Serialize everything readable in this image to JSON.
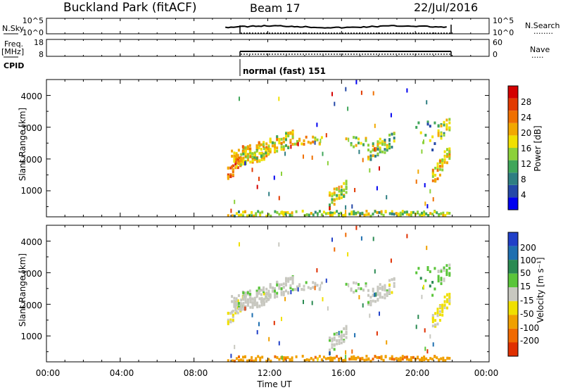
{
  "header": {
    "station": "Buckland Park (fitACF)",
    "beam": "Beam 17",
    "date": "22/Jul/2016"
  },
  "panels": {
    "nsky": {
      "label": "N.Sky",
      "left_ticks": [
        "10^5",
        "10^0"
      ],
      "right_ticks": [
        "10^5",
        "10^0"
      ],
      "right_label": "N.Search",
      "right_sample": "........"
    },
    "freq": {
      "label_top": "Freq.",
      "label_unit": "[MHz]",
      "left_ticks": [
        "18",
        "8"
      ],
      "right_ticks": [
        "60",
        "0"
      ],
      "right_label": "Nave",
      "right_sample": "....."
    },
    "cpid": {
      "label": "CPID",
      "value": "normal (fast) 151"
    }
  },
  "power_panel": {
    "ylabel": "Slant Range [km]",
    "y_ticks": [
      "1000",
      "2000",
      "3000",
      "4000"
    ],
    "colorbar": {
      "label": "Power [dB]",
      "ticks": [
        "4",
        "8",
        "12",
        "16",
        "20",
        "24",
        "28"
      ],
      "colors": [
        "#0000f0",
        "#2448a8",
        "#2e7e82",
        "#3fa65a",
        "#8cd13a",
        "#f0e000",
        "#f2a800",
        "#f07000",
        "#e23a00",
        "#d40000"
      ]
    }
  },
  "velocity_panel": {
    "ylabel": "Slant Range [km]",
    "y_ticks": [
      "1000",
      "2000",
      "3000",
      "4000"
    ],
    "colorbar": {
      "label": "Velocity [m s⁻¹]",
      "ticks": [
        "200",
        "100",
        "50",
        "15",
        "-15",
        "-50",
        "-100",
        "-200"
      ],
      "colors": [
        "#2040c8",
        "#1e6fb0",
        "#2a8a52",
        "#5ac53a",
        "#c8c8c0",
        "#f0e000",
        "#f0a000",
        "#f06a00",
        "#e03000"
      ]
    }
  },
  "x_axis": {
    "label": "Time UT",
    "ticks": [
      "00:00",
      "04:00",
      "08:00",
      "12:00",
      "16:00",
      "20:00",
      "00:00"
    ]
  },
  "chart_data": {
    "type": "heatmap",
    "title": "Buckland Park (fitACF)",
    "xlabel": "Time UT",
    "ylabel": "Slant Range [km]",
    "x_range_hours": [
      0,
      24
    ],
    "y_range_km": [
      180,
      4500
    ],
    "data_start_hour": 9.7,
    "data_end_hour": 21.8,
    "power_scale_db": [
      0,
      30
    ],
    "velocity_scale_ms": [
      -250,
      250
    ],
    "echo_regions": [
      {
        "start_hour": 9.8,
        "end_hour": 10.6,
        "range_km": [
          1500,
          2150
        ],
        "power_db": 24,
        "velocity_ms": -20
      },
      {
        "start_hour": 10.0,
        "end_hour": 12.0,
        "range_km": [
          2000,
          2250
        ],
        "power_db": 18,
        "velocity_ms": 0
      },
      {
        "start_hour": 10.5,
        "end_hour": 13.3,
        "range_km": [
          2100,
          2650
        ],
        "power_db": 16,
        "velocity_ms": 5
      },
      {
        "start_hour": 13.3,
        "end_hour": 15.0,
        "range_km": [
          2700,
          2400
        ],
        "power_db": 17,
        "velocity_ms": 0
      },
      {
        "start_hour": 16.2,
        "end_hour": 17.4,
        "range_km": [
          2700,
          2300
        ],
        "power_db": 14,
        "velocity_ms": 20
      },
      {
        "start_hour": 17.4,
        "end_hour": 18.8,
        "range_km": [
          2200,
          2600
        ],
        "power_db": 13,
        "velocity_ms": 0
      },
      {
        "start_hour": 15.3,
        "end_hour": 16.2,
        "range_km": [
          700,
          1100
        ],
        "power_db": 15,
        "velocity_ms": 5
      },
      {
        "start_hour": 20.0,
        "end_hour": 21.0,
        "range_km": [
          3200,
          2200
        ],
        "power_db": 10,
        "velocity_ms": 60
      },
      {
        "start_hour": 20.9,
        "end_hour": 21.8,
        "range_km": [
          1400,
          2200
        ],
        "power_db": 18,
        "velocity_ms": -40
      },
      {
        "start_hour": 21.2,
        "end_hour": 21.8,
        "range_km": [
          2800,
          3100
        ],
        "power_db": 14,
        "velocity_ms": 30
      },
      {
        "start_hour": 9.8,
        "end_hour": 21.8,
        "range_km": [
          180,
          300
        ],
        "power_db": 14,
        "velocity_ms": -120
      }
    ],
    "colorbars": {
      "power_db_ticks": [
        4,
        8,
        12,
        16,
        20,
        24,
        28
      ],
      "velocity_ticks": [
        200,
        100,
        50,
        15,
        -15,
        -50,
        -100,
        -200
      ]
    }
  }
}
